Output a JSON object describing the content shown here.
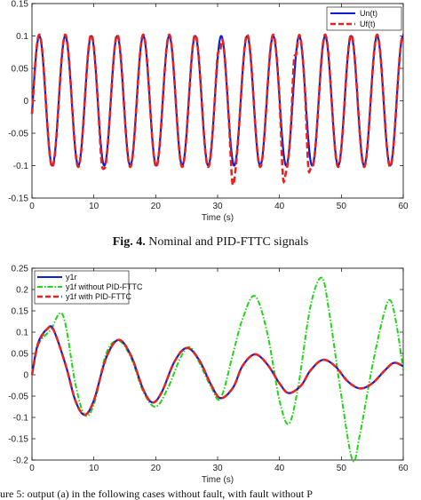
{
  "caption": {
    "label": "Fig. 4.",
    "text": " Nominal and PID-FTTC signals"
  },
  "bottom_text": "ure 5: output (a) in the following cases without fault, with fault without P",
  "chart_data": [
    {
      "type": "line",
      "xlabel": "Time (s)",
      "ylabel": "",
      "xlim": [
        0,
        60
      ],
      "ylim": [
        -0.15,
        0.15
      ],
      "xticks": [
        0,
        10,
        20,
        30,
        40,
        50,
        60
      ],
      "yticks": [
        -0.15,
        -0.1,
        -0.05,
        0,
        0.05,
        0.1,
        0.15
      ],
      "ytick_labels": [
        "-0.15",
        "-0.1",
        "-0.05",
        "0",
        "0.05",
        "0.1",
        "0.15"
      ],
      "grid": false,
      "legend_position": "top-right",
      "series": [
        {
          "name": "Un(t)",
          "color": "#0b1fd6",
          "style": "solid",
          "amplitude": 0.1,
          "period_s": 4.2
        },
        {
          "name": "Uf(t)",
          "color": "#e6231f",
          "style": "dashed",
          "amplitude": 0.1,
          "period_s": 4.2,
          "fault_dips": [
            {
              "t": 11.5,
              "y": -0.105
            },
            {
              "t": 32.5,
              "y": -0.13
            },
            {
              "t": 40.7,
              "y": -0.125
            },
            {
              "t": 44.8,
              "y": -0.11
            }
          ],
          "fault_spikes": [
            {
              "t": 30.3,
              "y": 0.075
            },
            {
              "t": 42.5,
              "y": 0.07
            }
          ]
        }
      ]
    },
    {
      "type": "line",
      "xlabel": "Time (s)",
      "ylabel": "",
      "xlim": [
        0,
        60
      ],
      "ylim": [
        -0.2,
        0.25
      ],
      "xticks": [
        0,
        10,
        20,
        30,
        40,
        50,
        60
      ],
      "yticks": [
        -0.2,
        -0.15,
        -0.1,
        -0.05,
        0,
        0.05,
        0.1,
        0.15,
        0.2,
        0.25
      ],
      "ytick_labels": [
        "-0.2",
        "-0.15",
        "-0.1",
        "-0.05",
        "0",
        "0.05",
        "0.1",
        "0.15",
        "0.2",
        "0.25"
      ],
      "grid": false,
      "legend_position": "top-left",
      "series": [
        {
          "name": "y1r",
          "color": "#0b1fd6",
          "style": "solid",
          "points": [
            [
              0,
              0
            ],
            [
              1,
              0.075
            ],
            [
              2.5,
              0.108
            ],
            [
              3.5,
              0.105
            ],
            [
              5.5,
              0.02
            ],
            [
              7,
              -0.06
            ],
            [
              8.5,
              -0.094
            ],
            [
              10,
              -0.06
            ],
            [
              12,
              0.04
            ],
            [
              14,
              0.082
            ],
            [
              16,
              0.045
            ],
            [
              18,
              -0.035
            ],
            [
              19.5,
              -0.065
            ],
            [
              21,
              -0.04
            ],
            [
              23,
              0.03
            ],
            [
              25,
              0.063
            ],
            [
              27,
              0.035
            ],
            [
              29,
              -0.025
            ],
            [
              30.5,
              -0.055
            ],
            [
              32.5,
              -0.03
            ],
            [
              34,
              0.02
            ],
            [
              36,
              0.048
            ],
            [
              38,
              0.025
            ],
            [
              40,
              -0.02
            ],
            [
              41.5,
              -0.043
            ],
            [
              43.5,
              -0.025
            ],
            [
              45,
              0.01
            ],
            [
              47,
              0.035
            ],
            [
              49,
              0.02
            ],
            [
              51,
              -0.015
            ],
            [
              53,
              -0.032
            ],
            [
              55,
              -0.02
            ],
            [
              57,
              0.01
            ],
            [
              58.5,
              0.028
            ],
            [
              60,
              0.02
            ]
          ]
        },
        {
          "name": "y1f without PID-FTTC",
          "color": "#22d418",
          "style": "dashdot",
          "points": [
            [
              0,
              0
            ],
            [
              1,
              0.07
            ],
            [
              3,
              0.105
            ],
            [
              5,
              0.14
            ],
            [
              7,
              -0.02
            ],
            [
              8.5,
              -0.094
            ],
            [
              10,
              -0.07
            ],
            [
              12,
              0.05
            ],
            [
              14,
              0.08
            ],
            [
              16,
              0.04
            ],
            [
              18,
              -0.04
            ],
            [
              20,
              -0.075
            ],
            [
              22,
              -0.03
            ],
            [
              24,
              0.04
            ],
            [
              25.5,
              0.065
            ],
            [
              27,
              0.03
            ],
            [
              29,
              -0.03
            ],
            [
              30.5,
              -0.055
            ],
            [
              32.5,
              0.05
            ],
            [
              34,
              0.13
            ],
            [
              36,
              0.185
            ],
            [
              38,
              0.1
            ],
            [
              40,
              -0.06
            ],
            [
              41.5,
              -0.115
            ],
            [
              43,
              -0.03
            ],
            [
              45,
              0.16
            ],
            [
              46.8,
              0.228
            ],
            [
              48,
              0.15
            ],
            [
              50,
              -0.05
            ],
            [
              51.8,
              -0.2
            ],
            [
              53,
              -0.14
            ],
            [
              55,
              0.02
            ],
            [
              57,
              0.15
            ],
            [
              58,
              0.173
            ],
            [
              59,
              0.11
            ],
            [
              60,
              0.01
            ]
          ]
        },
        {
          "name": "y1f with PID-FTTC",
          "color": "#e6231f",
          "style": "dashed",
          "points": [
            [
              0,
              0
            ],
            [
              1,
              0.072
            ],
            [
              2.5,
              0.108
            ],
            [
              3.5,
              0.105
            ],
            [
              5.5,
              0.02
            ],
            [
              7,
              -0.06
            ],
            [
              8.5,
              -0.094
            ],
            [
              10,
              -0.06
            ],
            [
              12,
              0.04
            ],
            [
              14,
              0.082
            ],
            [
              16,
              0.045
            ],
            [
              18,
              -0.035
            ],
            [
              19.5,
              -0.065
            ],
            [
              21,
              -0.04
            ],
            [
              23,
              0.03
            ],
            [
              25,
              0.063
            ],
            [
              27,
              0.035
            ],
            [
              29,
              -0.025
            ],
            [
              30.5,
              -0.055
            ],
            [
              32.5,
              -0.03
            ],
            [
              34,
              0.02
            ],
            [
              36,
              0.048
            ],
            [
              38,
              0.025
            ],
            [
              40,
              -0.02
            ],
            [
              41.5,
              -0.043
            ],
            [
              43.5,
              -0.025
            ],
            [
              45,
              0.01
            ],
            [
              47,
              0.035
            ],
            [
              49,
              0.02
            ],
            [
              51,
              -0.015
            ],
            [
              53,
              -0.032
            ],
            [
              55,
              -0.02
            ],
            [
              57,
              0.01
            ],
            [
              58.5,
              0.028
            ],
            [
              60,
              0.02
            ]
          ]
        }
      ]
    }
  ]
}
